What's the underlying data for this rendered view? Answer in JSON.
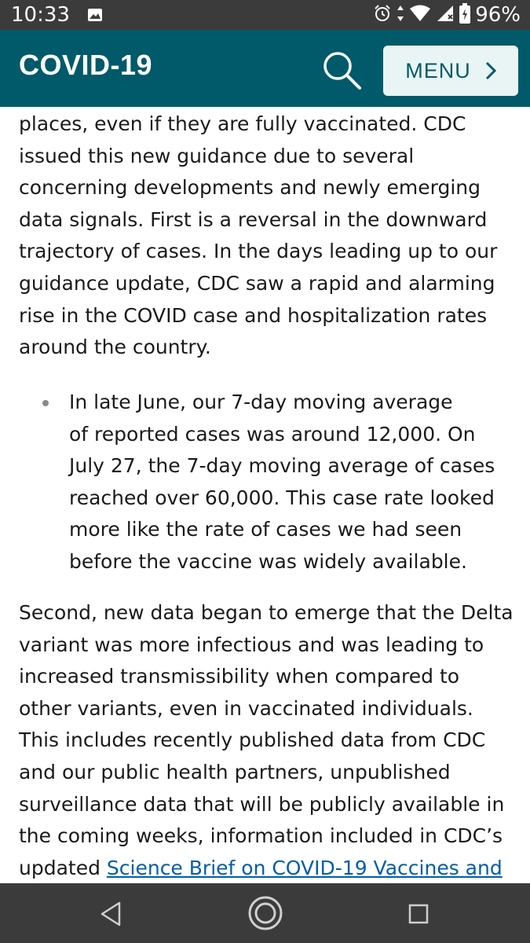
{
  "status_bar": {
    "time": "10:33",
    "battery": "96%",
    "network_badge": "4"
  },
  "header": {
    "title": "COVID-19",
    "menu_label": "MENU"
  },
  "content": {
    "paragraph1_lines": [
      "places, even if they are fully vaccinated. CDC",
      "issued this new guidance due to several",
      "concerning developments and newly emerging",
      "data signals.  First is a reversal in the downward",
      "trajectory of cases. In the days leading up to our",
      "guidance update, CDC saw a rapid and alarming",
      "rise in the COVID case and hospitalization rates",
      "around the country."
    ],
    "bullet_lines": [
      "In late June, our 7-day moving average",
      "of reported cases was around 12,000. On",
      "July 27, the 7-day moving average of cases",
      "reached over 60,000. This case rate looked",
      "more like the rate of cases we had seen",
      "before the vaccine was widely available."
    ],
    "paragraph2_lines": [
      "Second, new data began to emerge that the Delta",
      "variant was more infectious and was leading to",
      "increased transmissibility when compared to",
      "other variants, even in vaccinated individuals.",
      "This includes recently published data from CDC",
      "and our public health partners, unpublished",
      "surveillance data that will be publicly available in",
      "the coming weeks, information included in CDC’s"
    ],
    "last_line_prefix": "updated ",
    "link_text": "Science Brief on COVID-19 Vaccines and"
  },
  "icons": {
    "search": "search-icon",
    "menu_chevron": "chevron-right-icon",
    "back": "back-triangle-icon",
    "home": "home-circle-icon",
    "recents": "recents-square-icon"
  },
  "colors": {
    "header_bg": "#005a6a",
    "menu_bg": "#e9f5f5",
    "link": "#005eaa",
    "system_bars": "#3b3b3b"
  }
}
